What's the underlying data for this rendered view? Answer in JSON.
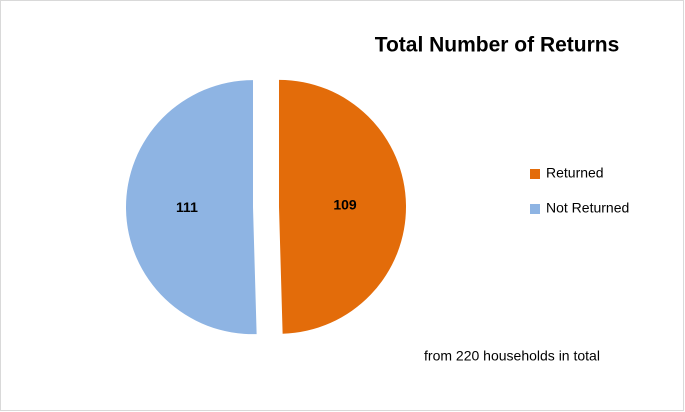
{
  "chart_data": {
    "type": "pie",
    "title": "Total Number of Returns",
    "categories": [
      "Returned",
      "Not Returned"
    ],
    "values": [
      109,
      111
    ],
    "colors": [
      "#e36c0a",
      "#8eb4e3"
    ],
    "legend": "right",
    "annotation": "from 220 households in total"
  }
}
